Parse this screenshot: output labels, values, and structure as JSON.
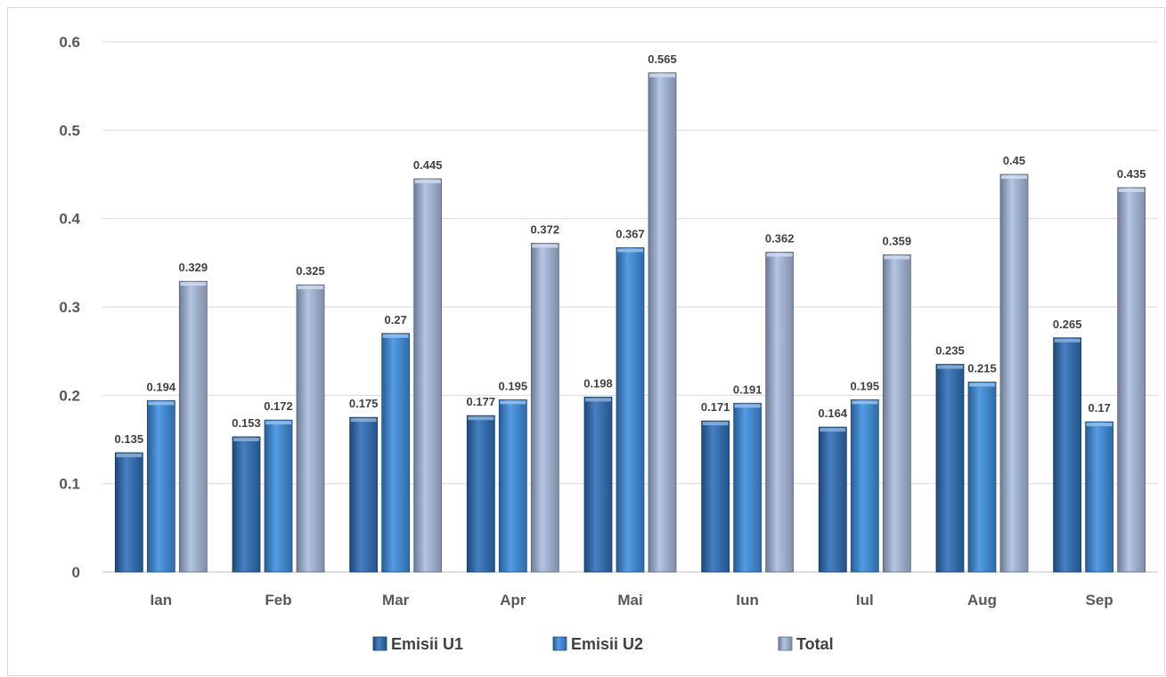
{
  "chart_data": {
    "type": "bar",
    "title": "",
    "xlabel": "",
    "ylabel": "",
    "categories": [
      "Ian",
      "Feb",
      "Mar",
      "Apr",
      "Mai",
      "Iun",
      "Iul",
      "Aug",
      "Sep"
    ],
    "series": [
      {
        "name": "Emisii U1",
        "color": "#2e6fb8",
        "values": [
          0.135,
          0.153,
          0.175,
          0.177,
          0.198,
          0.171,
          0.164,
          0.235,
          0.265
        ]
      },
      {
        "name": "Emisii U2",
        "color": "#3d8ee0",
        "values": [
          0.194,
          0.172,
          0.27,
          0.195,
          0.367,
          0.191,
          0.195,
          0.215,
          0.17
        ]
      },
      {
        "name": "Total",
        "color": "#a9bde0",
        "values": [
          0.329,
          0.325,
          0.445,
          0.372,
          0.565,
          0.362,
          0.359,
          0.45,
          0.435
        ]
      }
    ],
    "ylim": [
      0,
      0.6
    ],
    "yticks": [
      "0",
      "0.1",
      "0.2",
      "0.3",
      "0.4",
      "0.5",
      "0.6"
    ],
    "grid": true,
    "legend_position": "bottom"
  }
}
